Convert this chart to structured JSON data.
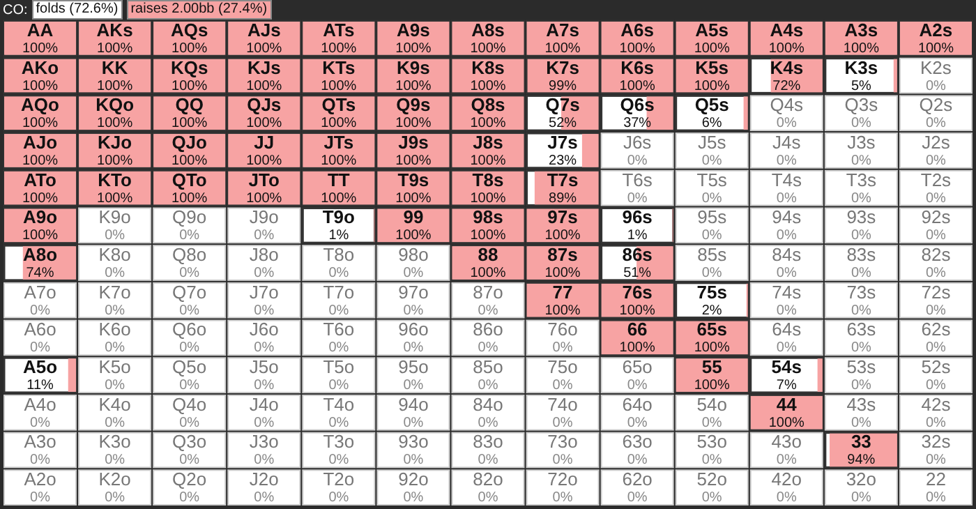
{
  "chart_data": {
    "type": "heatmap",
    "title": "CO:",
    "colors": [
      "#ffffff",
      "#f7a3a3"
    ],
    "annotations": [
      "folds (72.6%)",
      "raises 2.00bb (27.4%)",
      "AA",
      "AKs",
      "AQs",
      "AJs",
      "ATs",
      "A9s",
      "A8s",
      "A7s",
      "A6s",
      "A5s",
      "A4s",
      "A3s",
      "A2s",
      "AKo",
      "KK",
      "KQs",
      "KJs",
      "KTs",
      "K9s",
      "K8s",
      "K7s",
      "K6s",
      "K5s",
      "K4s",
      "K3s",
      "K2s",
      "AQo",
      "KQo",
      "QQ",
      "QJs",
      "QTs",
      "Q9s",
      "Q8s",
      "Q7s",
      "Q6s",
      "Q5s",
      "Q4s",
      "Q3s",
      "Q2s",
      "AJo",
      "KJo",
      "QJo",
      "JJ",
      "JTs",
      "J9s",
      "J8s",
      "J7s",
      "J6s",
      "J5s",
      "J4s",
      "J3s",
      "J2s",
      "ATo",
      "KTo",
      "QTo",
      "JTo",
      "TT",
      "T9s",
      "T8s",
      "T7s",
      "T6s",
      "T5s",
      "T4s",
      "T3s",
      "T2s",
      "A9o",
      "K9o",
      "Q9o",
      "J9o",
      "T9o",
      "99",
      "98s",
      "97s",
      "96s",
      "95s",
      "94s",
      "93s",
      "92s",
      "A8o",
      "K8o",
      "Q8o",
      "J8o",
      "T8o",
      "98o",
      "88",
      "87s",
      "86s",
      "85s",
      "84s",
      "83s",
      "82s",
      "A7o",
      "K7o",
      "Q7o",
      "J7o",
      "T7o",
      "97o",
      "87o",
      "77",
      "76s",
      "75s",
      "74s",
      "73s",
      "72s",
      "A6o",
      "K6o",
      "Q6o",
      "J6o",
      "T6o",
      "96o",
      "86o",
      "76o",
      "66",
      "65s",
      "64s",
      "63s",
      "62s",
      "A5o",
      "K5o",
      "Q5o",
      "J5o",
      "T5o",
      "95o",
      "85o",
      "75o",
      "65o",
      "55",
      "54s",
      "53s",
      "52s",
      "A4o",
      "K4o",
      "Q4o",
      "J4o",
      "T4o",
      "94o",
      "84o",
      "74o",
      "64o",
      "54o",
      "44",
      "43s",
      "42s",
      "A3o",
      "K3o",
      "Q3o",
      "J3o",
      "T3o",
      "93o",
      "83o",
      "73o",
      "63o",
      "53o",
      "43o",
      "33",
      "32s",
      "A2o",
      "K2o",
      "Q2o",
      "J2o",
      "T2o",
      "92o",
      "82o",
      "72o",
      "62o",
      "52o",
      "42o",
      "32o",
      "22"
    ],
    "categories": [
      null,
      null,
      null,
      null,
      null,
      null,
      null,
      null,
      null,
      null,
      null,
      null,
      null
    ],
    "y_categories": [
      null,
      null,
      null,
      null,
      null,
      null,
      null,
      null,
      null,
      null,
      null,
      null,
      null
    ],
    "cells": [
      [
        100,
        100,
        100,
        100,
        100,
        100,
        100,
        100,
        100,
        100,
        100,
        100,
        100
      ],
      [
        100,
        100,
        100,
        100,
        100,
        100,
        100,
        99,
        100,
        100,
        72,
        5,
        0
      ],
      [
        100,
        100,
        100,
        100,
        100,
        100,
        100,
        52,
        37,
        6,
        0,
        0,
        0
      ],
      [
        100,
        100,
        100,
        100,
        100,
        100,
        100,
        23,
        0,
        0,
        0,
        0,
        0
      ],
      [
        100,
        100,
        100,
        100,
        100,
        100,
        100,
        89,
        0,
        0,
        0,
        0,
        0
      ],
      [
        100,
        0,
        0,
        0,
        1,
        100,
        100,
        100,
        1,
        0,
        0,
        0,
        0
      ],
      [
        74,
        0,
        0,
        0,
        0,
        0,
        100,
        100,
        51,
        0,
        0,
        0,
        0
      ],
      [
        0,
        0,
        0,
        0,
        0,
        0,
        0,
        100,
        100,
        2,
        0,
        0,
        0
      ],
      [
        0,
        0,
        0,
        0,
        0,
        0,
        0,
        0,
        100,
        100,
        0,
        0,
        0
      ],
      [
        11,
        0,
        0,
        0,
        0,
        0,
        0,
        0,
        0,
        100,
        7,
        0,
        0
      ],
      [
        0,
        0,
        0,
        0,
        0,
        0,
        0,
        0,
        0,
        0,
        100,
        0,
        0
      ],
      [
        0,
        0,
        0,
        0,
        0,
        0,
        0,
        0,
        0,
        0,
        0,
        94,
        0
      ],
      [
        0,
        0,
        0,
        0,
        0,
        0,
        0,
        0,
        0,
        0,
        0,
        0,
        0
      ]
    ],
    "cell_labels": [
      [
        "100%",
        "100%",
        "100%",
        "100%",
        "100%",
        "100%",
        "100%",
        "100%",
        "100%",
        "100%",
        "100%",
        "100%",
        "100%"
      ],
      [
        "100%",
        "100%",
        "100%",
        "100%",
        "100%",
        "100%",
        "100%",
        "99%",
        "100%",
        "100%",
        "72%",
        "5%",
        "0%"
      ],
      [
        "100%",
        "100%",
        "100%",
        "100%",
        "100%",
        "100%",
        "100%",
        "52%",
        "37%",
        "6%",
        "0%",
        "0%",
        "0%"
      ],
      [
        "100%",
        "100%",
        "100%",
        "100%",
        "100%",
        "100%",
        "100%",
        "23%",
        "0%",
        "0%",
        "0%",
        "0%",
        "0%"
      ],
      [
        "100%",
        "100%",
        "100%",
        "100%",
        "100%",
        "100%",
        "100%",
        "89%",
        "0%",
        "0%",
        "0%",
        "0%",
        "0%"
      ],
      [
        "100%",
        "0%",
        "0%",
        "0%",
        "1%",
        "100%",
        "100%",
        "100%",
        "1%",
        "0%",
        "0%",
        "0%",
        "0%"
      ],
      [
        "74%",
        "0%",
        "0%",
        "0%",
        "0%",
        "0%",
        "100%",
        "100%",
        "51%",
        "0%",
        "0%",
        "0%",
        "0%"
      ],
      [
        "0%",
        "0%",
        "0%",
        "0%",
        "0%",
        "0%",
        "0%",
        "100%",
        "100%",
        "2%",
        "0%",
        "0%",
        "0%"
      ],
      [
        "0%",
        "0%",
        "0%",
        "0%",
        "0%",
        "0%",
        "0%",
        "0%",
        "100%",
        "100%",
        "0%",
        "0%",
        "0%"
      ],
      [
        "11%",
        "0%",
        "0%",
        "0%",
        "0%",
        "0%",
        "0%",
        "0%",
        "0%",
        "100%",
        "7%",
        "0%",
        "0%"
      ],
      [
        "0%",
        "0%",
        "0%",
        "0%",
        "0%",
        "0%",
        "0%",
        "0%",
        "0%",
        "0%",
        "100%",
        "0%",
        "0%"
      ],
      [
        "0%",
        "0%",
        "0%",
        "0%",
        "0%",
        "0%",
        "0%",
        "0%",
        "0%",
        "0%",
        "0%",
        "94%",
        "0%"
      ],
      [
        "0%",
        "0%",
        "0%",
        "0%",
        "0%",
        "0%",
        "0%",
        "0%",
        "0%",
        "0%",
        "0%",
        "0%",
        "0%"
      ]
    ]
  }
}
